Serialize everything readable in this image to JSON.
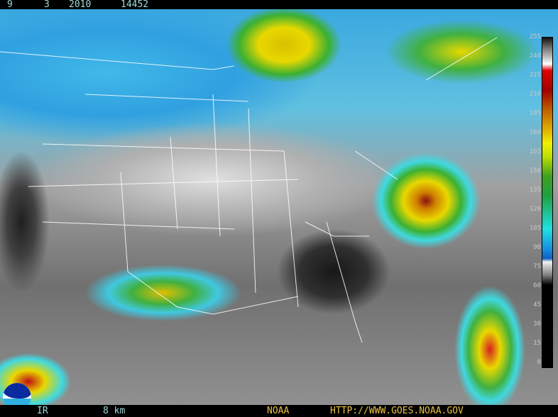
{
  "header": {
    "month": "9",
    "day": "3",
    "year": "2010",
    "time": "14452"
  },
  "colorbar": {
    "labels": [
      "255",
      "240",
      "225",
      "210",
      "195",
      "180",
      "165",
      "150",
      "135",
      "120",
      "105",
      "90",
      "75",
      "60",
      "45",
      "30",
      "15",
      "0"
    ]
  },
  "footer": {
    "channel": "IR",
    "resolution": "8 km",
    "agency": "NOAA",
    "url": "HTTP://WWW.GOES.NOAA.GOV"
  },
  "colors": {
    "footer_text_left": "#9fd8d8",
    "footer_text_right": "#e8c040",
    "cloud_high": "#c01010",
    "cloud_mid": "#e8d800",
    "cloud_low": "#40d8e0"
  },
  "logo": {
    "text": "NOAA"
  }
}
